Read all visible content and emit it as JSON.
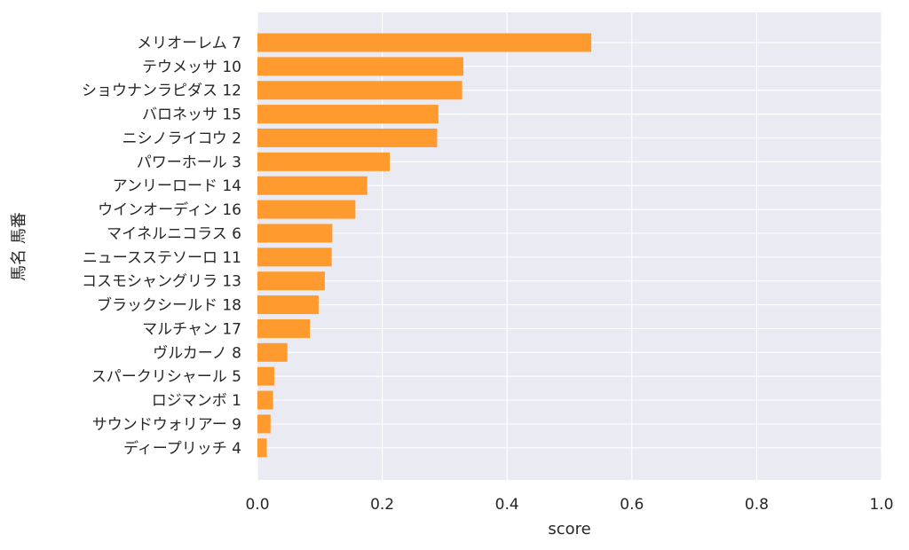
{
  "chart_data": {
    "type": "bar",
    "orientation": "horizontal",
    "xlabel": "score",
    "ylabel": "馬名 馬番",
    "xlim": [
      0.0,
      1.0
    ],
    "xticks": [
      "0.0",
      "0.2",
      "0.4",
      "0.6",
      "0.8",
      "1.0"
    ],
    "grid": true,
    "bar_color": "#FF9A2E",
    "background_color": "#EAEAF2",
    "categories": [
      "メリオーレム 7",
      "テウメッサ 10",
      "ショウナンラピダス 12",
      "バロネッサ 15",
      "ニシノライコウ 2",
      "パワーホール 3",
      "アンリーロード 14",
      "ウインオーディン 16",
      "マイネルニコラス 6",
      "ニュースステソーロ 11",
      "コスモシャングリラ 13",
      "ブラックシールド 18",
      "マルチャン 17",
      "ヴルカーノ 8",
      "スパークリシャール 5",
      "ロジマンボ 1",
      "サウンドウォリアー 9",
      "ディープリッチ 4"
    ],
    "values": [
      0.535,
      0.33,
      0.328,
      0.29,
      0.288,
      0.212,
      0.176,
      0.157,
      0.12,
      0.119,
      0.108,
      0.098,
      0.084,
      0.048,
      0.027,
      0.025,
      0.021,
      0.015
    ]
  }
}
